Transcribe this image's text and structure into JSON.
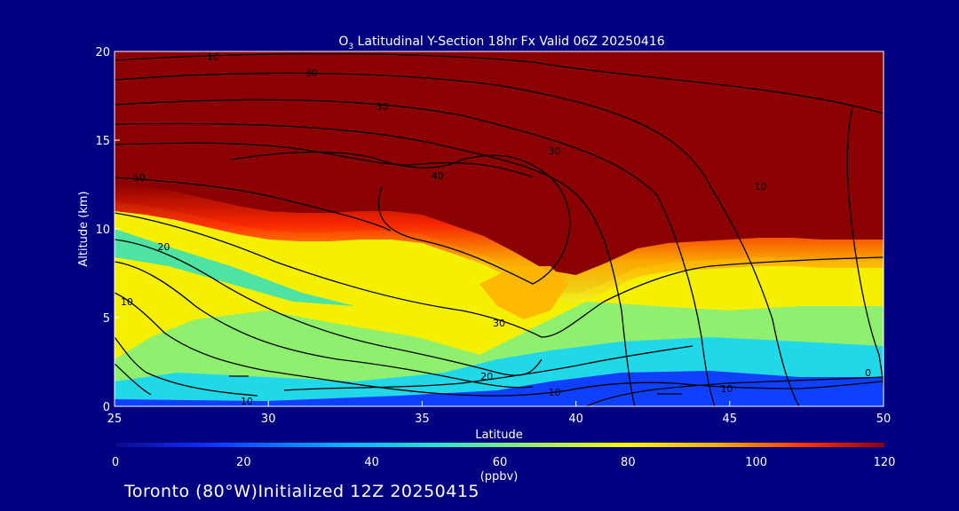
{
  "chart_data": {
    "type": "heatmap",
    "title": "O3 Latitudinal Y-Section 18hr  Fx Valid 06Z 20250416",
    "title_parts": {
      "pre": "O",
      "sub": "3",
      "rest": " Latitudinal Y-Section 18hr  Fx Valid 06Z 20250416"
    },
    "xlabel": "Latitude",
    "ylabel": "Altitude (km)",
    "xlim": [
      25,
      50
    ],
    "ylim": [
      0,
      20
    ],
    "x_ticks": [
      "25",
      "30",
      "35",
      "40",
      "45",
      "50"
    ],
    "y_ticks": [
      "0",
      "5",
      "10",
      "15",
      "20"
    ],
    "colorbar": {
      "unit": "(ppbv)",
      "range": [
        0,
        120
      ],
      "ticks": [
        "0",
        "20",
        "40",
        "60",
        "80",
        "100",
        "120"
      ]
    },
    "tropopause_km": [
      [
        25,
        11.5
      ],
      [
        26,
        11.3
      ],
      [
        27,
        11.0
      ],
      [
        28,
        10.6
      ],
      [
        29,
        10.2
      ],
      [
        30,
        9.9
      ],
      [
        31,
        9.8
      ],
      [
        32,
        9.8
      ],
      [
        33,
        9.9
      ],
      [
        34,
        9.9
      ],
      [
        35,
        9.7
      ],
      [
        36,
        9.1
      ],
      [
        37,
        8.5
      ],
      [
        38,
        7.6
      ],
      [
        39,
        6.6
      ],
      [
        40,
        6.3
      ],
      [
        41,
        7.0
      ],
      [
        42,
        7.8
      ],
      [
        43,
        8.1
      ],
      [
        44,
        8.2
      ],
      [
        45,
        8.3
      ],
      [
        46,
        8.4
      ],
      [
        47,
        8.4
      ],
      [
        48,
        8.3
      ],
      [
        49,
        8.3
      ],
      [
        50,
        8.3
      ]
    ],
    "contour_labels": [
      {
        "text": "10",
        "lat": 25.4,
        "alt": 5.7
      },
      {
        "text": "20",
        "lat": 26.6,
        "alt": 8.8
      },
      {
        "text": "50",
        "lat": 25.8,
        "alt": 12.7
      },
      {
        "text": "40",
        "lat": 35.5,
        "alt": 12.8
      },
      {
        "text": "30",
        "lat": 39.3,
        "alt": 14.2
      },
      {
        "text": "30",
        "lat": 33.7,
        "alt": 16.7
      },
      {
        "text": "30",
        "lat": 31.4,
        "alt": 18.6
      },
      {
        "text": "10",
        "lat": 28.2,
        "alt": 19.5
      },
      {
        "text": "10",
        "lat": 46.0,
        "alt": 12.2
      },
      {
        "text": "30",
        "lat": 37.5,
        "alt": 4.5
      },
      {
        "text": "20",
        "lat": 37.1,
        "alt": 1.5
      },
      {
        "text": "10",
        "lat": 39.3,
        "alt": 0.6
      },
      {
        "text": "10",
        "lat": 29.3,
        "alt": 0.1
      },
      {
        "text": "10",
        "lat": 44.9,
        "alt": 0.8
      },
      {
        "text": "0",
        "lat": 49.5,
        "alt": 1.7
      }
    ]
  },
  "footer": {
    "location": "Toronto (80°W)",
    "initialized": "Initialized 12Z 20250415"
  }
}
